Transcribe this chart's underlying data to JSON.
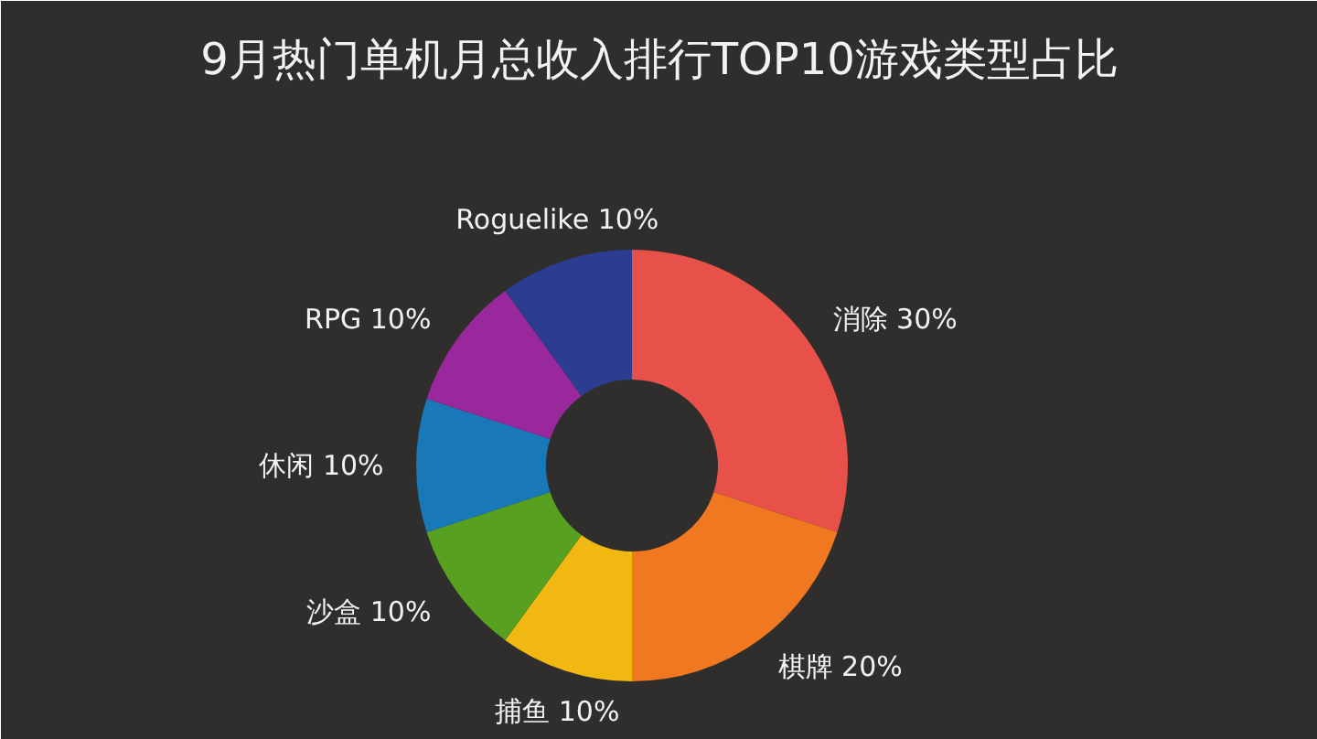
{
  "chart_data": {
    "type": "donut",
    "title": "9月热门单机月总收入排行TOP10游戏类型占比",
    "categories": [
      "消除",
      "棋牌",
      "捕鱼",
      "沙盒",
      "休闲",
      "RPG",
      "Roguelike"
    ],
    "values": [
      30,
      20,
      10,
      10,
      10,
      10,
      10
    ],
    "colors": [
      "#e8504a",
      "#f07820",
      "#f0b810",
      "#58a020",
      "#1878b8",
      "#98289c",
      "#2c3c90"
    ],
    "value_labels": [
      "30%",
      "20%",
      "10%",
      "10%",
      "10%",
      "10%",
      "10%"
    ]
  }
}
